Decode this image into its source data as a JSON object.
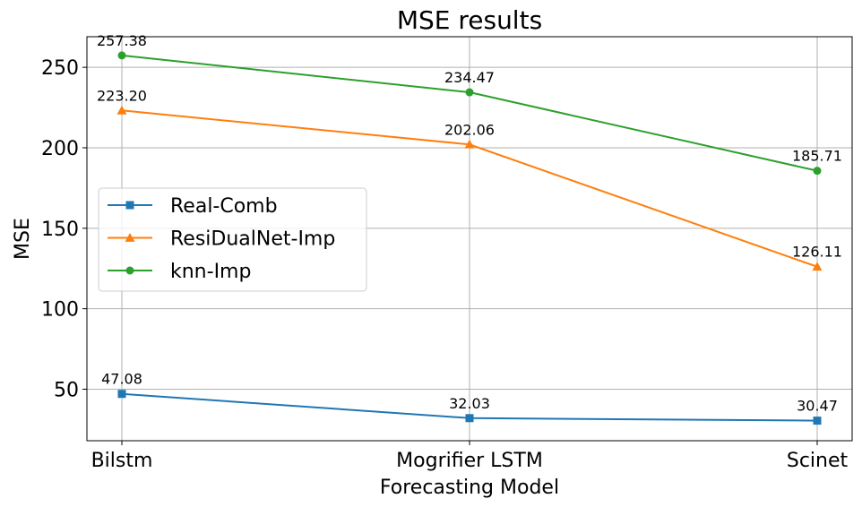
{
  "chart_data": {
    "type": "line",
    "title": "MSE results",
    "xlabel": "Forecasting Model",
    "ylabel": "MSE",
    "categories": [
      "Bilstm",
      "Mogrifier LSTM",
      "Scinet"
    ],
    "ylim": [
      18,
      269
    ],
    "yticks": [
      50,
      100,
      150,
      200,
      250
    ],
    "grid": true,
    "legend_position": "center-left",
    "series": [
      {
        "name": "Real-Comb",
        "values": [
          47.08,
          32.03,
          30.47
        ],
        "labels": [
          "47.08",
          "32.03",
          "30.47"
        ],
        "color": "#1f77b4",
        "marker": "square"
      },
      {
        "name": "ResiDualNet-Imp",
        "values": [
          223.2,
          202.06,
          126.11
        ],
        "labels": [
          "223.20",
          "202.06",
          "126.11"
        ],
        "color": "#ff7f0e",
        "marker": "triangle"
      },
      {
        "name": "knn-Imp",
        "values": [
          257.38,
          234.47,
          185.71
        ],
        "labels": [
          "257.38",
          "234.47",
          "185.71"
        ],
        "color": "#2ca02c",
        "marker": "circle"
      }
    ]
  }
}
